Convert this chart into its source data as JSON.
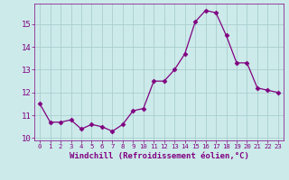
{
  "x": [
    0,
    1,
    2,
    3,
    4,
    5,
    6,
    7,
    8,
    9,
    10,
    11,
    12,
    13,
    14,
    15,
    16,
    17,
    18,
    19,
    20,
    21,
    22,
    23
  ],
  "y": [
    11.5,
    10.7,
    10.7,
    10.8,
    10.4,
    10.6,
    10.5,
    10.3,
    10.6,
    11.2,
    11.3,
    12.5,
    12.5,
    13.0,
    13.7,
    15.1,
    15.6,
    15.5,
    14.5,
    13.3,
    13.3,
    12.2,
    12.1,
    12.0
  ],
  "line_color": "#800080",
  "marker": "D",
  "marker_size": 2.5,
  "bg_color": "#cceaea",
  "grid_color": "#aacece",
  "xlabel": "Windchill (Refroidissement éolien,°C)",
  "ylim": [
    9.9,
    15.9
  ],
  "yticks": [
    10,
    11,
    12,
    13,
    14,
    15
  ],
  "xlim": [
    -0.5,
    23.5
  ],
  "xticks": [
    0,
    1,
    2,
    3,
    4,
    5,
    6,
    7,
    8,
    9,
    10,
    11,
    12,
    13,
    14,
    15,
    16,
    17,
    18,
    19,
    20,
    21,
    22,
    23
  ],
  "xtick_fontsize": 5.2,
  "ytick_fontsize": 6.5,
  "xlabel_fontsize": 6.5
}
